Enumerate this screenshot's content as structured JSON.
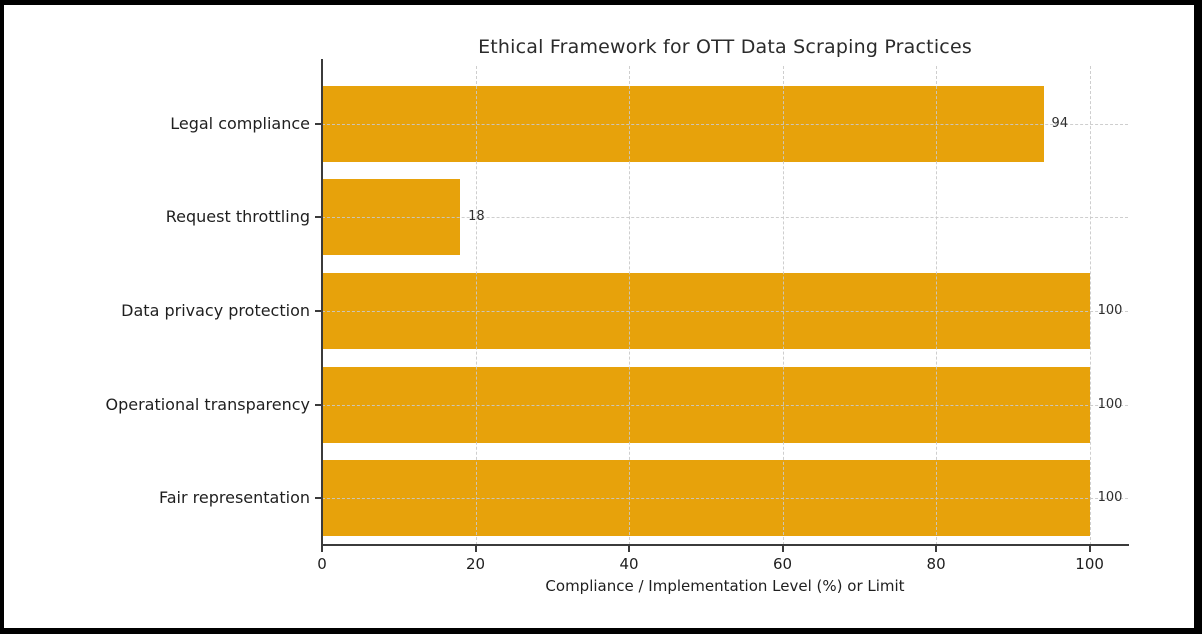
{
  "chart_data": {
    "type": "bar",
    "orientation": "horizontal",
    "title": "Ethical Framework for OTT Data Scraping Practices",
    "categories": [
      "Legal compliance",
      "Request throttling",
      "Data privacy protection",
      "Operational transparency",
      "Fair representation"
    ],
    "values": [
      94,
      18,
      100,
      100,
      100
    ],
    "value_labels": [
      "94",
      "18",
      "100",
      "100",
      "100"
    ],
    "xlabel": "Compliance / Implementation Level (%) or Limit",
    "ylabel": "",
    "xlim": [
      0,
      105
    ],
    "xticks": [
      0,
      20,
      40,
      60,
      80,
      100
    ],
    "xtick_labels": [
      "0",
      "20",
      "40",
      "60",
      "80",
      "100"
    ],
    "grid": "dashed, both axes, drawn over bars",
    "legend": "none",
    "bar_color": "#E7A20B",
    "text_color": "#1f1f1f",
    "spine_color": "#3b3b3b",
    "grid_color": "#c9c9c9",
    "frame_border_color": "#000000",
    "background_color": "#ffffff"
  }
}
